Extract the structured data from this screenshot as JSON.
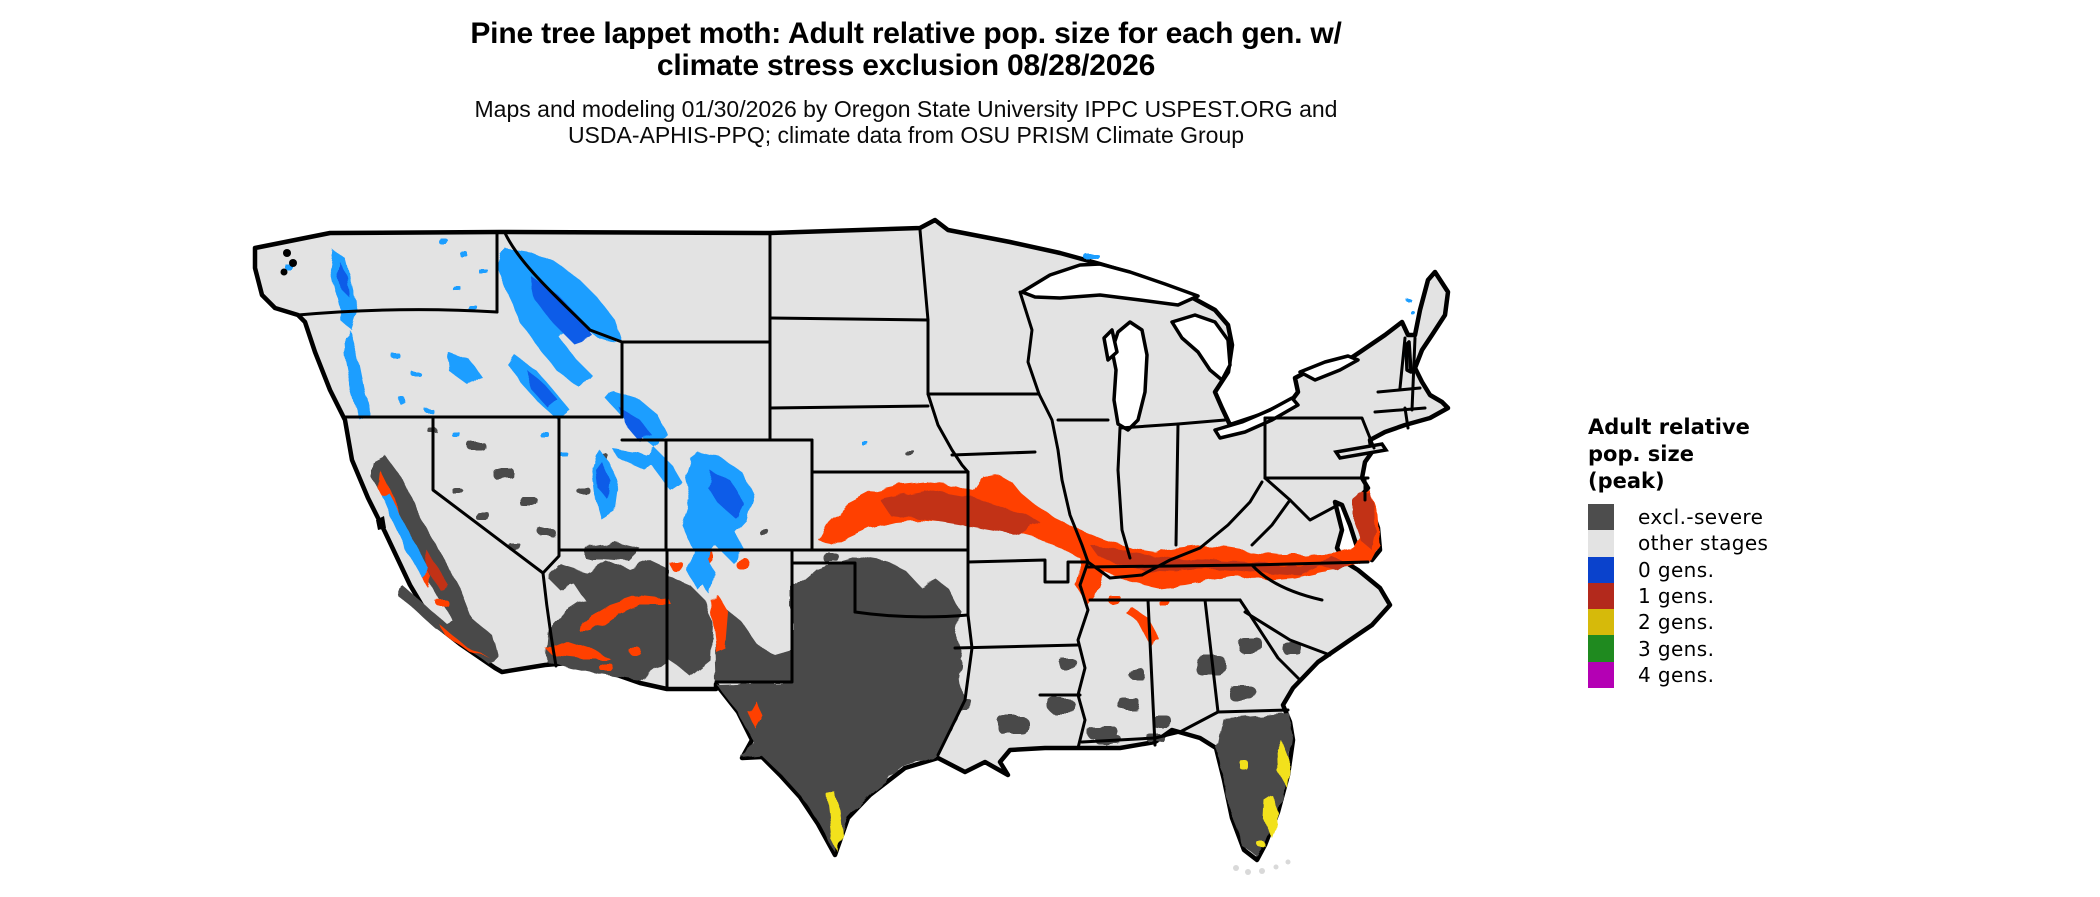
{
  "title": {
    "line1": "Pine tree lappet moth: Adult relative pop. size for each gen. w/",
    "line2": "climate stress exclusion 08/28/2026"
  },
  "subtitle": {
    "line1": "Maps and modeling 01/30/2026 by Oregon State University IPPC USPEST.ORG and",
    "line2": "USDA-APHIS-PPQ; climate data from OSU PRISM Climate Group"
  },
  "legend": {
    "title_lines": [
      "Adult relative",
      "pop. size",
      "(peak)"
    ],
    "items": [
      {
        "label": "excl.-severe",
        "color": "#4d4d4d"
      },
      {
        "label": "other stages",
        "color": "#e3e3e3"
      },
      {
        "label": "0 gens.",
        "color": "#0a42cc"
      },
      {
        "label": "1 gens.",
        "color": "#b3291c"
      },
      {
        "label": "2 gens.",
        "color": "#d6ba0a"
      },
      {
        "label": "3 gens.",
        "color": "#1f8a1f"
      },
      {
        "label": "4 gens.",
        "color": "#b400b4"
      }
    ]
  },
  "map": {
    "region": "Continental United States",
    "colors": {
      "state_fill": "#e3e3e3",
      "state_border": "#000000",
      "excl_severe": "#4a4a4a",
      "zero_gen_light": "#1f9eff",
      "zero_gen_dark": "#0c5ce8",
      "one_gen_bright": "#ff4000",
      "one_gen_dark": "#c23318",
      "two_gen": "#f2e11e",
      "water": "#ffffff"
    }
  }
}
